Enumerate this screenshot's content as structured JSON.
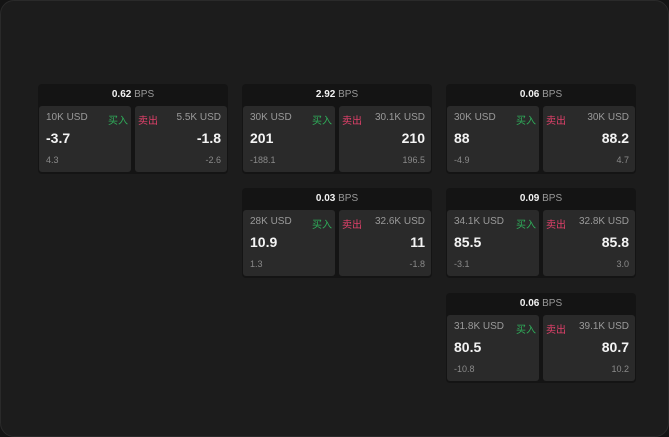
{
  "labels": {
    "unit": "BPS",
    "buy": "买入",
    "sell": "卖出"
  },
  "colors": {
    "buy": "#2fae5a",
    "sell": "#e0406a",
    "background": "#1c1c1c"
  },
  "cards": [
    {
      "spread": "0.62",
      "buy": {
        "qty": "10K USD",
        "price": "-3.7",
        "change": "4.3"
      },
      "sell": {
        "qty": "5.5K USD",
        "price": "-1.8",
        "change": "-2.6"
      }
    },
    {
      "spread": "2.92",
      "buy": {
        "qty": "30K USD",
        "price": "201",
        "change": "-188.1"
      },
      "sell": {
        "qty": "30.1K USD",
        "price": "210",
        "change": "196.5"
      }
    },
    {
      "spread": "0.06",
      "buy": {
        "qty": "30K USD",
        "price": "88",
        "change": "-4.9"
      },
      "sell": {
        "qty": "30K USD",
        "price": "88.2",
        "change": "4.7"
      }
    },
    {
      "spread": "0.03",
      "buy": {
        "qty": "28K USD",
        "price": "10.9",
        "change": "1.3"
      },
      "sell": {
        "qty": "32.6K USD",
        "price": "11",
        "change": "-1.8"
      }
    },
    {
      "spread": "0.09",
      "buy": {
        "qty": "34.1K USD",
        "price": "85.5",
        "change": "-3.1"
      },
      "sell": {
        "qty": "32.8K USD",
        "price": "85.8",
        "change": "3.0"
      }
    },
    {
      "spread": "0.06",
      "buy": {
        "qty": "31.8K USD",
        "price": "80.5",
        "change": "-10.8"
      },
      "sell": {
        "qty": "39.1K USD",
        "price": "80.7",
        "change": "10.2"
      }
    }
  ]
}
